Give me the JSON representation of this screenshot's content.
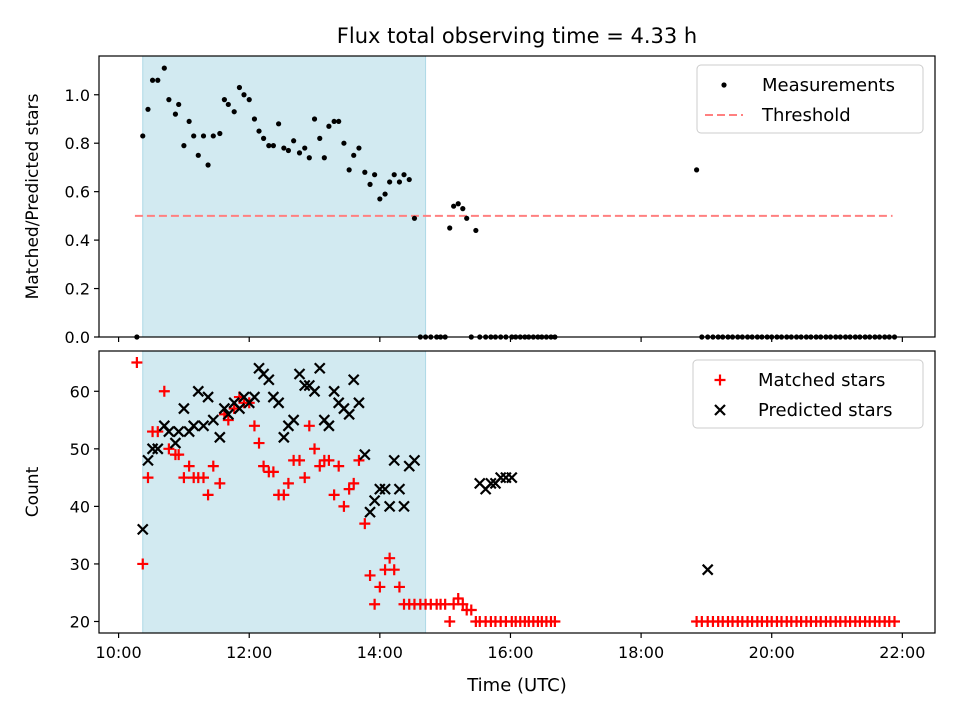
{
  "figure": {
    "title": "Flux total observing time = 4.33 h",
    "xlabel": "Time (UTC)",
    "x_range_hours": [
      9.7,
      22.5
    ],
    "x_ticks": [
      {
        "hour": 10,
        "label": "10:00"
      },
      {
        "hour": 12,
        "label": "12:00"
      },
      {
        "hour": 14,
        "label": "14:00"
      },
      {
        "hour": 16,
        "label": "16:00"
      },
      {
        "hour": 18,
        "label": "18:00"
      },
      {
        "hour": 20,
        "label": "20:00"
      },
      {
        "hour": 22,
        "label": "22:00"
      }
    ],
    "highlight_span_hours": [
      10.37,
      14.7
    ],
    "highlight_color": "#add8e6"
  },
  "chart_data": [
    {
      "type": "scatter",
      "ylabel": "Matched/Predicted stars",
      "ylim": [
        0,
        1.16
      ],
      "y_ticks": [
        "0.0",
        "0.2",
        "0.4",
        "0.6",
        "0.8",
        "1.0"
      ],
      "legend_position": "top-right",
      "threshold": {
        "name": "Threshold",
        "value": 0.5,
        "x_range": [
          10.25,
          21.85
        ],
        "color": "#ff8080"
      },
      "series": [
        {
          "name": "Measurements",
          "color": "#000000",
          "marker": "dot",
          "x": [
            10.28,
            10.37,
            10.45,
            10.52,
            10.6,
            10.7,
            10.77,
            10.87,
            10.92,
            11.0,
            11.08,
            11.15,
            11.22,
            11.3,
            11.37,
            11.45,
            11.55,
            11.62,
            11.68,
            11.77,
            11.85,
            11.92,
            12.0,
            12.08,
            12.15,
            12.22,
            12.3,
            12.37,
            12.45,
            12.53,
            12.6,
            12.68,
            12.77,
            12.85,
            12.92,
            13.0,
            13.08,
            13.15,
            13.22,
            13.3,
            13.37,
            13.45,
            13.53,
            13.6,
            13.68,
            13.77,
            13.85,
            13.92,
            14.0,
            14.08,
            14.15,
            14.22,
            14.3,
            14.37,
            14.45,
            14.53,
            14.62,
            14.7,
            14.78,
            14.87,
            14.93,
            15.0,
            15.07,
            15.13,
            15.2,
            15.27,
            15.33,
            15.4,
            15.47,
            15.53,
            15.62,
            15.7,
            15.77,
            15.85,
            15.93,
            16.02,
            16.08,
            16.15,
            16.22,
            16.28,
            16.35,
            16.42,
            16.48,
            16.55,
            16.62,
            16.68,
            18.85,
            18.93,
            19.02,
            19.1,
            19.18,
            19.25,
            19.33,
            19.4,
            19.48,
            19.55,
            19.63,
            19.7,
            19.78,
            19.85,
            19.93,
            20.0,
            20.08,
            20.15,
            20.23,
            20.3,
            20.38,
            20.45,
            20.53,
            20.6,
            20.68,
            20.75,
            20.83,
            20.9,
            20.98,
            21.05,
            21.13,
            21.2,
            21.28,
            21.35,
            21.43,
            21.5,
            21.58,
            21.65,
            21.73,
            21.8,
            21.88
          ],
          "y": [
            0.0,
            0.83,
            0.94,
            1.06,
            1.06,
            1.11,
            0.98,
            0.92,
            0.96,
            0.79,
            0.89,
            0.83,
            0.75,
            0.83,
            0.71,
            0.83,
            0.84,
            0.98,
            0.96,
            0.93,
            1.03,
            1.0,
            0.98,
            0.9,
            0.85,
            0.82,
            0.79,
            0.79,
            0.88,
            0.78,
            0.77,
            0.81,
            0.76,
            0.78,
            0.74,
            0.9,
            0.82,
            0.74,
            0.87,
            0.89,
            0.89,
            0.8,
            0.69,
            0.75,
            0.78,
            0.68,
            0.63,
            0.67,
            0.57,
            0.59,
            0.64,
            0.67,
            0.64,
            0.67,
            0.65,
            0.49,
            0.0,
            0.0,
            0.0,
            0.0,
            0.0,
            0.0,
            0.45,
            0.54,
            0.55,
            0.53,
            0.49,
            0.0,
            0.44,
            0.0,
            0.0,
            0.0,
            0.0,
            0.0,
            0.0,
            0.0,
            0.0,
            0.0,
            0.0,
            0.0,
            0.0,
            0.0,
            0.0,
            0.0,
            0.0,
            0.0,
            0.69,
            0.0,
            0.0,
            0.0,
            0.0,
            0.0,
            0.0,
            0.0,
            0.0,
            0.0,
            0.0,
            0.0,
            0.0,
            0.0,
            0.0,
            0.0,
            0.0,
            0.0,
            0.0,
            0.0,
            0.0,
            0.0,
            0.0,
            0.0,
            0.0,
            0.0,
            0.0,
            0.0,
            0.0,
            0.0,
            0.0,
            0.0,
            0.0,
            0.0,
            0.0,
            0.0,
            0.0,
            0.0,
            0.0,
            0.0,
            0.0
          ]
        }
      ]
    },
    {
      "type": "scatter",
      "ylabel": "Count",
      "ylim": [
        18,
        67
      ],
      "y_ticks": [
        "20",
        "30",
        "40",
        "50",
        "60"
      ],
      "legend_position": "top-right",
      "series": [
        {
          "name": "Matched stars",
          "color": "#ff0000",
          "marker": "plus",
          "x": [
            10.28,
            10.37,
            10.45,
            10.52,
            10.6,
            10.7,
            10.77,
            10.87,
            10.92,
            11.0,
            11.08,
            11.15,
            11.22,
            11.3,
            11.37,
            11.45,
            11.55,
            11.62,
            11.68,
            11.77,
            11.85,
            11.92,
            12.0,
            12.08,
            12.15,
            12.22,
            12.3,
            12.37,
            12.45,
            12.53,
            12.6,
            12.68,
            12.77,
            12.85,
            12.92,
            13.0,
            13.08,
            13.15,
            13.22,
            13.3,
            13.37,
            13.45,
            13.53,
            13.6,
            13.68,
            13.77,
            13.85,
            13.92,
            14.0,
            14.08,
            14.15,
            14.22,
            14.3,
            14.37,
            14.45,
            14.53,
            14.62,
            14.7,
            14.78,
            14.87,
            14.93,
            15.0,
            15.07,
            15.13,
            15.2,
            15.27,
            15.33,
            15.4,
            15.47,
            15.53,
            15.62,
            15.7,
            15.77,
            15.85,
            15.93,
            16.02,
            16.08,
            16.15,
            16.22,
            16.28,
            16.35,
            16.42,
            16.48,
            16.55,
            16.62,
            16.68,
            18.85,
            18.93,
            19.02,
            19.1,
            19.18,
            19.25,
            19.33,
            19.4,
            19.48,
            19.55,
            19.63,
            19.7,
            19.78,
            19.85,
            19.93,
            20.0,
            20.08,
            20.15,
            20.23,
            20.3,
            20.38,
            20.45,
            20.53,
            20.6,
            20.68,
            20.75,
            20.83,
            20.9,
            20.98,
            21.05,
            21.13,
            21.2,
            21.28,
            21.35,
            21.43,
            21.5,
            21.58,
            21.65,
            21.73,
            21.8,
            21.88
          ],
          "y": [
            65,
            30,
            45,
            53,
            53,
            60,
            50,
            49,
            49,
            45,
            47,
            45,
            45,
            45,
            42,
            47,
            44,
            56,
            55,
            57,
            59,
            58,
            58,
            54,
            51,
            47,
            46,
            46,
            42,
            42,
            44,
            48,
            48,
            45,
            54,
            50,
            47,
            48,
            48,
            42,
            47,
            40,
            43,
            44,
            48,
            37,
            28,
            23,
            26,
            29,
            31,
            29,
            26,
            23,
            23,
            23,
            23,
            23,
            23,
            23,
            23,
            23,
            20,
            23,
            24,
            23,
            22,
            22,
            20,
            20,
            20,
            20,
            20,
            20,
            20,
            20,
            20,
            20,
            20,
            20,
            20,
            20,
            20,
            20,
            20,
            20,
            20,
            20,
            20,
            20,
            20,
            20,
            20,
            20,
            20,
            20,
            20,
            20,
            20,
            20,
            20,
            20,
            20,
            20,
            20,
            20,
            20,
            20,
            20,
            20,
            20,
            20,
            20,
            20,
            20,
            20,
            20,
            20,
            20,
            20,
            20,
            20,
            20,
            20,
            20,
            20,
            20
          ]
        },
        {
          "name": "Predicted stars",
          "color": "#000000",
          "marker": "x",
          "x": [
            10.37,
            10.45,
            10.52,
            10.6,
            10.7,
            10.77,
            10.87,
            10.92,
            11.0,
            11.08,
            11.15,
            11.22,
            11.3,
            11.37,
            11.45,
            11.55,
            11.62,
            11.68,
            11.77,
            11.85,
            11.92,
            12.0,
            12.08,
            12.15,
            12.22,
            12.3,
            12.37,
            12.45,
            12.53,
            12.6,
            12.68,
            12.77,
            12.85,
            12.92,
            13.0,
            13.08,
            13.15,
            13.22,
            13.3,
            13.37,
            13.45,
            13.53,
            13.6,
            13.68,
            13.77,
            13.85,
            13.92,
            14.0,
            14.08,
            14.15,
            14.22,
            14.3,
            14.37,
            14.45,
            14.53,
            15.53,
            15.62,
            15.7,
            15.77,
            15.85,
            15.93,
            16.02,
            19.02
          ],
          "y": [
            36,
            48,
            50,
            50,
            54,
            53,
            51,
            53,
            57,
            53,
            54,
            60,
            54,
            59,
            55,
            52,
            57,
            56,
            58,
            57,
            59,
            58,
            59,
            64,
            63,
            62,
            59,
            58,
            52,
            54,
            55,
            63,
            61,
            61,
            60,
            64,
            55,
            54,
            60,
            58,
            57,
            56,
            62,
            58,
            49,
            39,
            41,
            43,
            43,
            40,
            48,
            43,
            40,
            47,
            48,
            44,
            43,
            44,
            44,
            45,
            45,
            45,
            29
          ]
        }
      ]
    }
  ]
}
